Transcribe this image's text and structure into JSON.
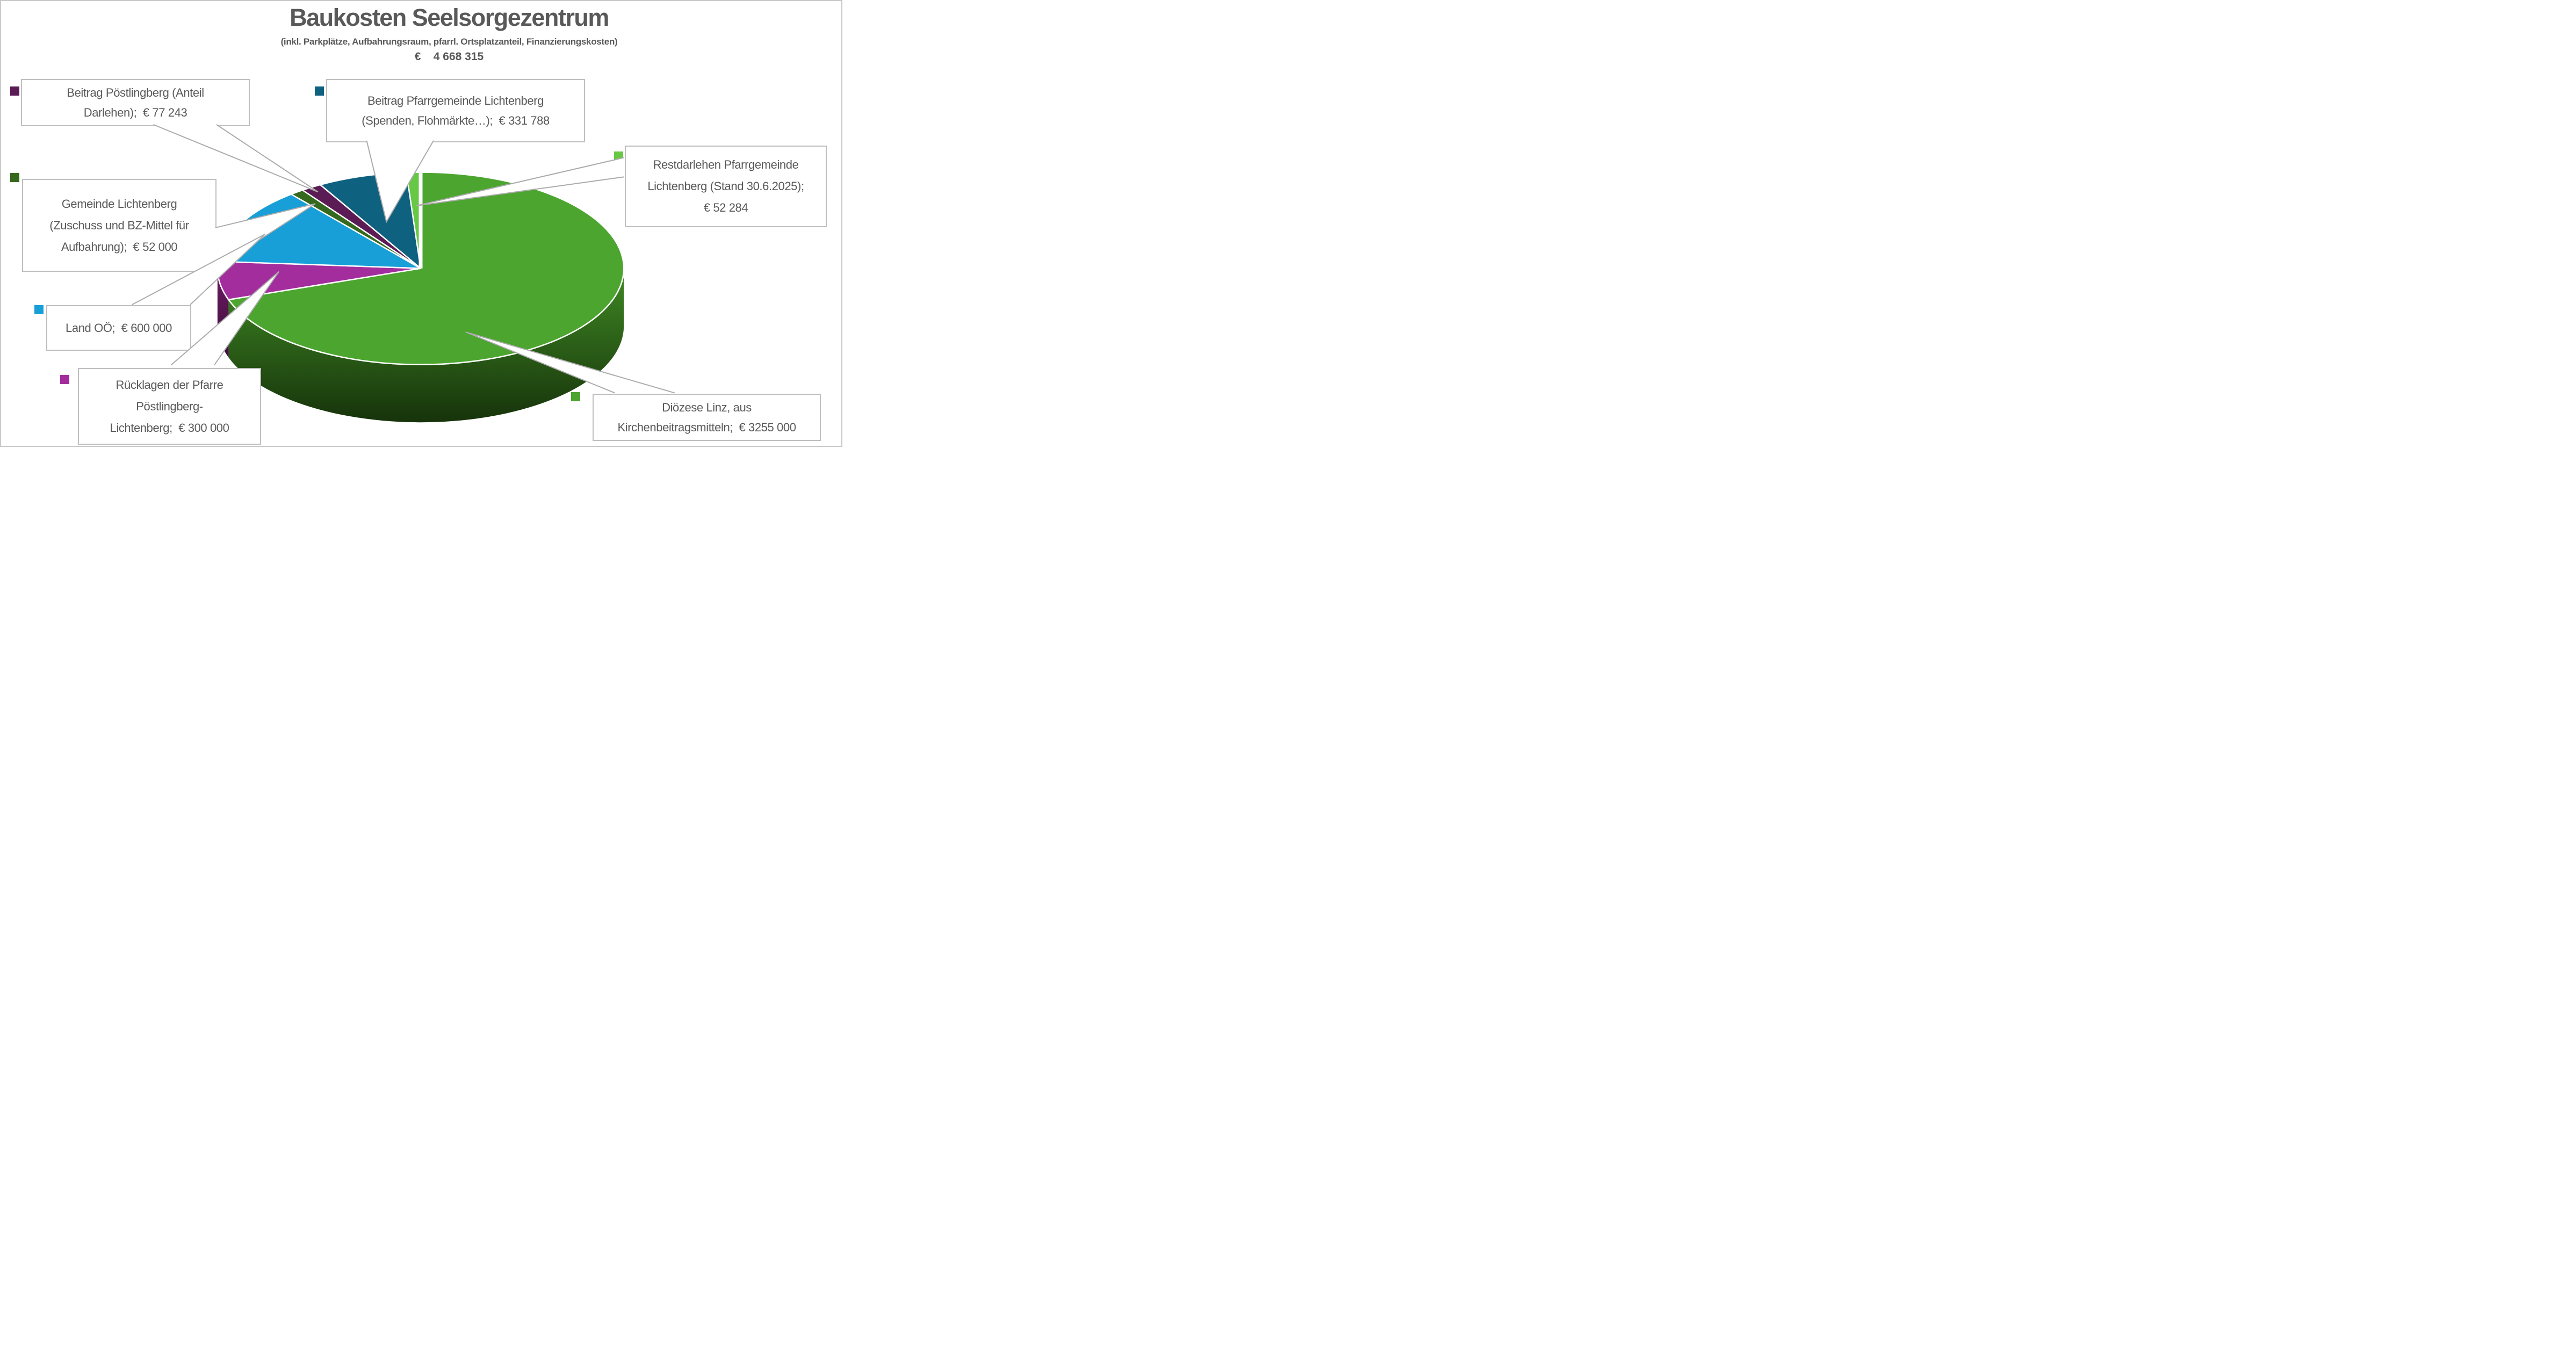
{
  "page": {
    "background": "#FFFFFF",
    "frame_color": "#C9C9C9",
    "text_color": "#595959",
    "callout_border_color": "#BFBFBF",
    "leader_line_color": "#ABABAB"
  },
  "header": {
    "title": "Baukosten Seelsorgezentrum",
    "subtitle": "(inkl. Parkplätze, Aufbahrungsraum, pfarrl. Ortsplatzanteil, Finanzierungskosten)",
    "total_label": "€    4 668 315"
  },
  "chart_data": {
    "type": "pie",
    "is_3d": true,
    "title": "Baukosten Seelsorgezentrum",
    "subtitle": "(inkl. Parkplätze, Aufbahrungsraum, pfarrl. Ortsplatzanteil, Finanzierungskosten)",
    "currency": "EUR",
    "total": 4668315,
    "total_label": "€    4 668 315",
    "start_angle_deg": 0,
    "direction": "clockwise",
    "legend_position": "callouts",
    "slices": [
      {
        "label": "Diözese Linz, aus Kirchenbeitragsmitteln",
        "value": 3255000,
        "display_value": "€ 3255 000",
        "color": "#4CA52F",
        "side_top": "#3F8A24",
        "side_bottom": "#17330B"
      },
      {
        "label": "Rücklagen der Pfarre Pöstlingberg-Lichtenberg",
        "value": 300000,
        "display_value": "€ 300 000",
        "color": "#A32D9D",
        "side_top": "#6B1A63",
        "side_bottom": "#3F0F3A"
      },
      {
        "label": "Land OÖ",
        "value": 600000,
        "display_value": "€ 600 000",
        "color": "#189FD8"
      },
      {
        "label": "Gemeinde Lichtenberg (Zuschuss und BZ-Mittel für Aufbahrung)",
        "value": 52000,
        "display_value": "€ 52 000",
        "color": "#35691D"
      },
      {
        "label": "Beitrag Pöstlingberg (Anteil Darlehen)",
        "value": 77243,
        "display_value": "€ 77 243",
        "color": "#5B1B54"
      },
      {
        "label": "Beitrag Pfarrgemeinde Lichtenberg (Spenden, Flohmärkte…)",
        "value": 331788,
        "display_value": "€ 331 788",
        "color": "#0E617F"
      },
      {
        "label": "Restdarlehen Pfarrgemeinde Lichtenberg (Stand 30.6.2025)",
        "value": 52284,
        "display_value": "€ 52 284",
        "color": "#67C845"
      }
    ]
  },
  "callouts": [
    {
      "id": "poestlingberg",
      "color": "#5B1B54",
      "lines": [
        "Beitrag Pöstlingberg (Anteil",
        "Darlehen);  € 77 243"
      ]
    },
    {
      "id": "pfarrgemeinde",
      "color": "#0E617F",
      "lines": [
        "Beitrag Pfarrgemeinde Lichtenberg",
        "(Spenden, Flohmärkte…);  € 331 788"
      ]
    },
    {
      "id": "restdarlehen",
      "color": "#67C845",
      "lines": [
        "Restdarlehen Pfarrgemeinde",
        "Lichtenberg (Stand 30.6.2025);",
        "€ 52 284"
      ]
    },
    {
      "id": "gemeinde",
      "color": "#35691D",
      "lines": [
        "Gemeinde Lichtenberg",
        "(Zuschuss und BZ-Mittel für",
        "Aufbahrung);  € 52 000"
      ]
    },
    {
      "id": "land-ooe",
      "color": "#189FD8",
      "lines": [
        "Land OÖ;  € 600 000"
      ]
    },
    {
      "id": "ruecklagen",
      "color": "#A32D9D",
      "lines": [
        "Rücklagen der Pfarre",
        "Pöstlingberg-",
        "Lichtenberg;  € 300 000"
      ]
    },
    {
      "id": "dioezese",
      "color": "#4CA52F",
      "lines": [
        "Diözese Linz, aus",
        "Kirchenbeitragsmitteln;  € 3255 000"
      ]
    }
  ]
}
